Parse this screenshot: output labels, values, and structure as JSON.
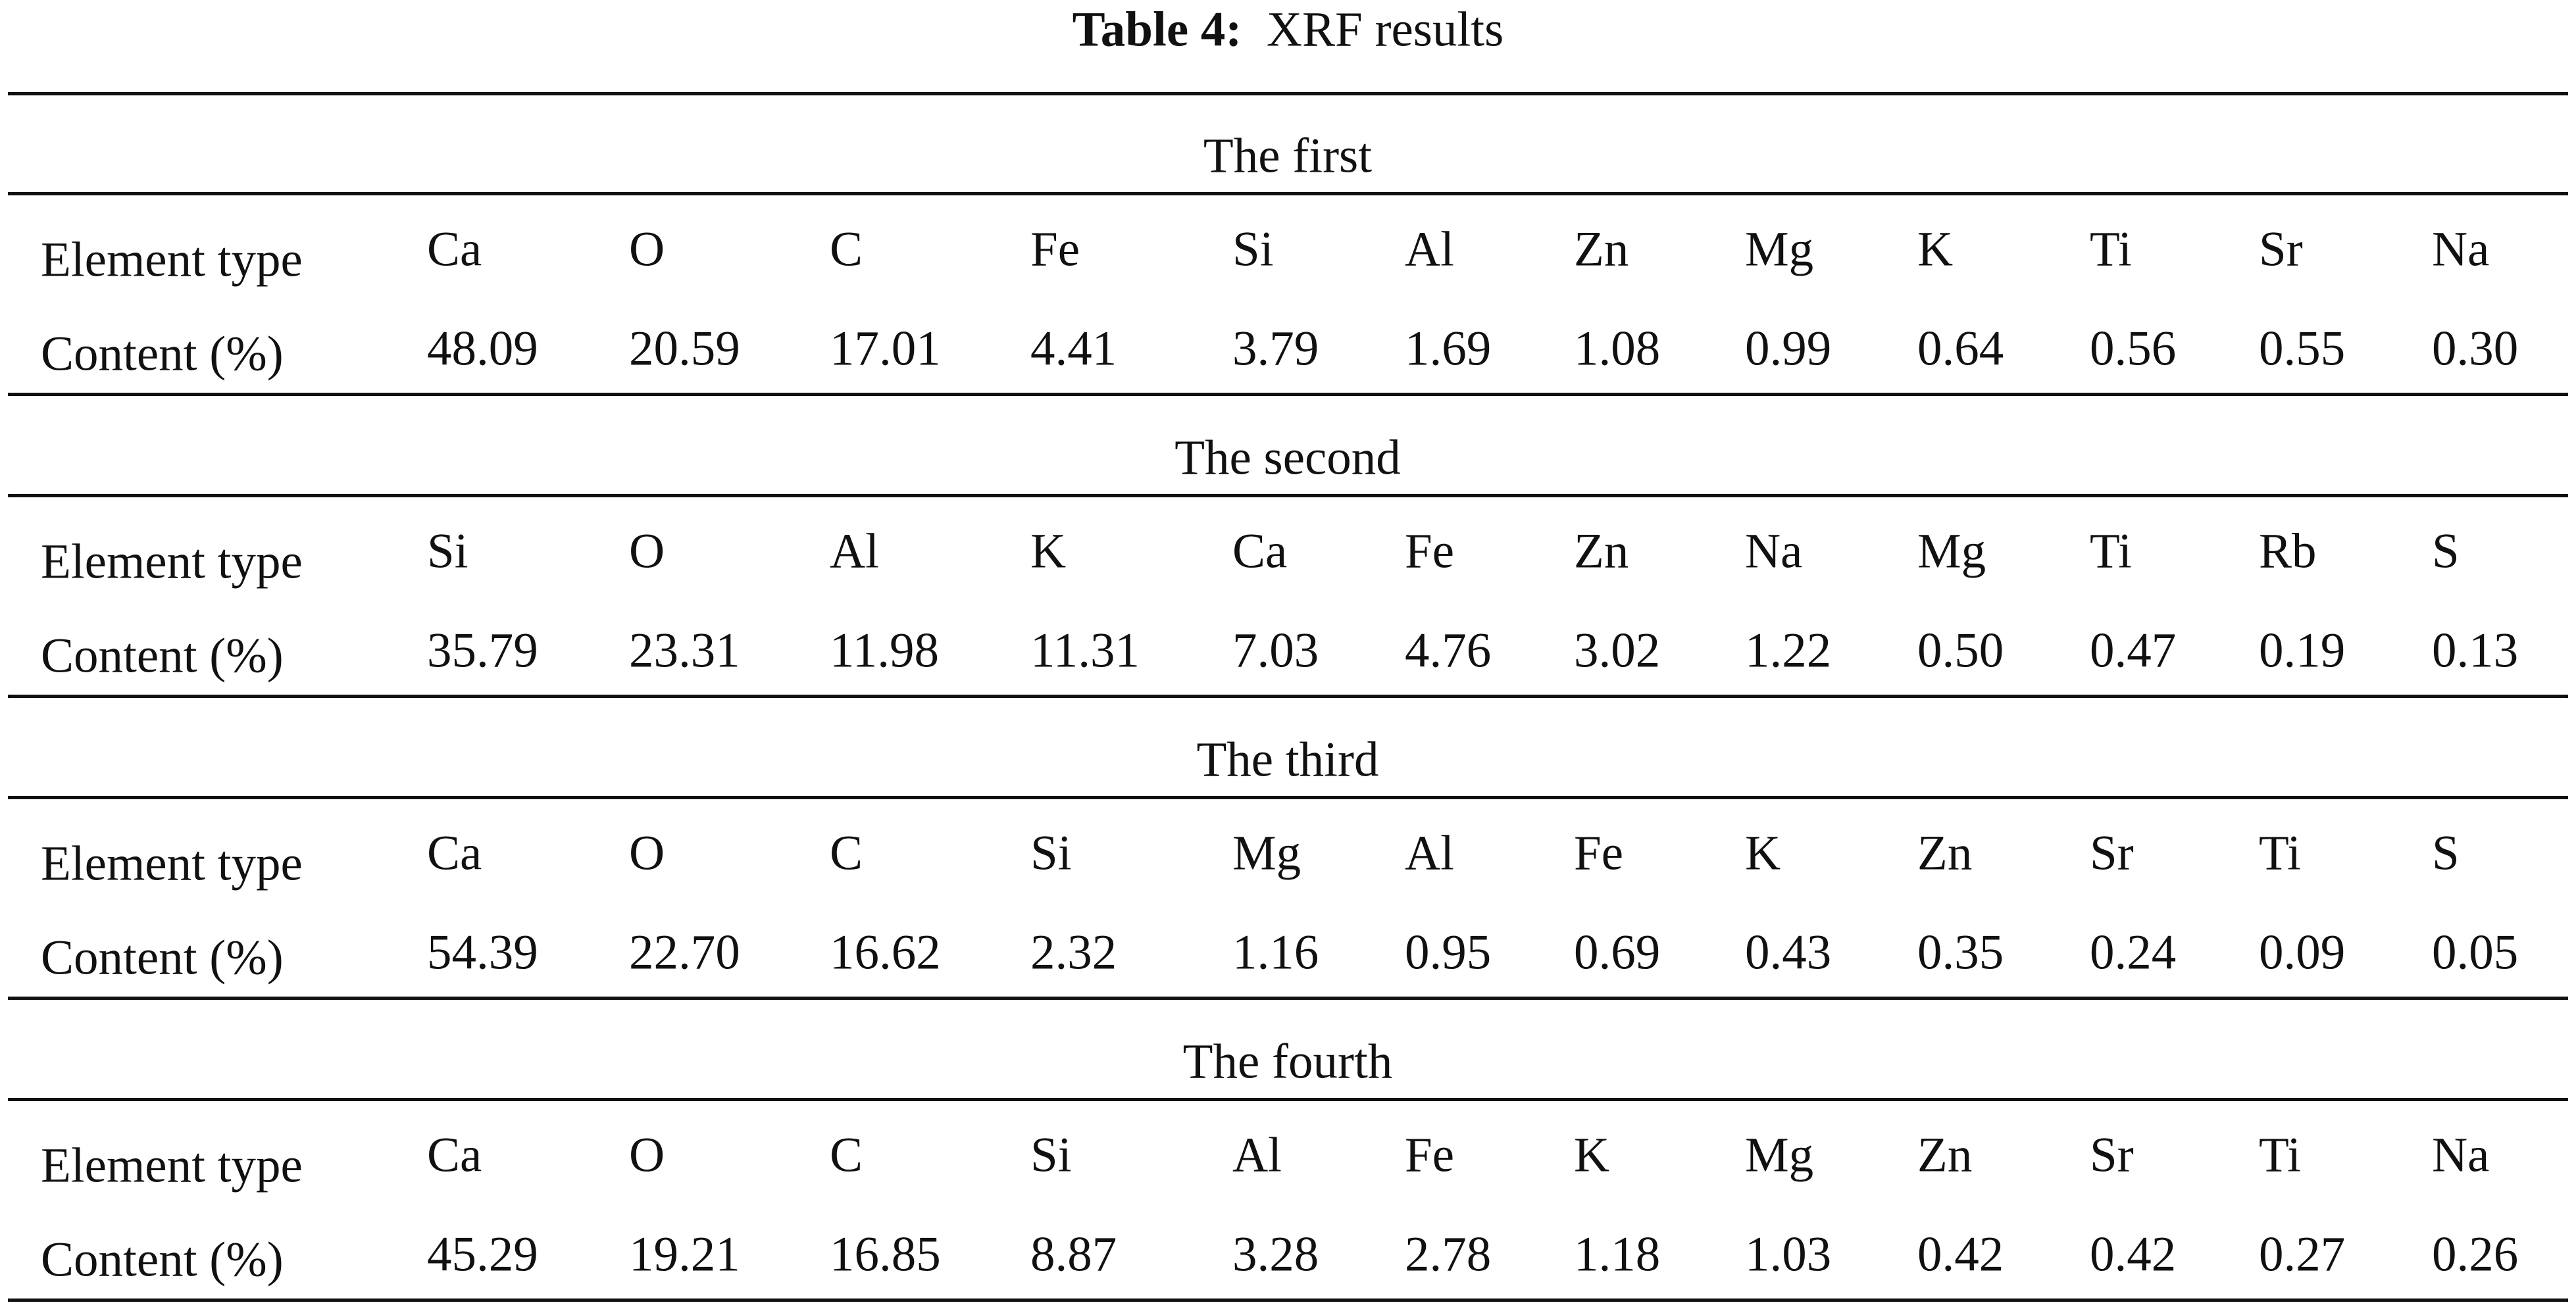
{
  "title": {
    "label": "Table 4:",
    "text": "XRF results"
  },
  "row_labels": [
    "Element type",
    "Content (%)"
  ],
  "sections": [
    {
      "name": "The first",
      "elements": [
        "Ca",
        "O",
        "C",
        "Fe",
        "Si",
        "Al",
        "Zn",
        "Mg",
        "K",
        "Ti",
        "Sr",
        "Na"
      ],
      "contents": [
        "48.09",
        "20.59",
        "17.01",
        "4.41",
        "3.79",
        "1.69",
        "1.08",
        "0.99",
        "0.64",
        "0.56",
        "0.55",
        "0.30"
      ]
    },
    {
      "name": "The second",
      "elements": [
        "Si",
        "O",
        "Al",
        "K",
        "Ca",
        "Fe",
        "Zn",
        "Na",
        "Mg",
        "Ti",
        "Rb",
        "S"
      ],
      "contents": [
        "35.79",
        "23.31",
        "11.98",
        "11.31",
        "7.03",
        "4.76",
        "3.02",
        "1.22",
        "0.50",
        "0.47",
        "0.19",
        "0.13"
      ]
    },
    {
      "name": "The third",
      "elements": [
        "Ca",
        "O",
        "C",
        "Si",
        "Mg",
        "Al",
        "Fe",
        "K",
        "Zn",
        "Sr",
        "Ti",
        "S"
      ],
      "contents": [
        "54.39",
        "22.70",
        "16.62",
        "2.32",
        "1.16",
        "0.95",
        "0.69",
        "0.43",
        "0.35",
        "0.24",
        "0.09",
        "0.05"
      ]
    },
    {
      "name": "The fourth",
      "elements": [
        "Ca",
        "O",
        "C",
        "Si",
        "Al",
        "Fe",
        "K",
        "Mg",
        "Zn",
        "Sr",
        "Ti",
        "Na"
      ],
      "contents": [
        "45.29",
        "19.21",
        "16.85",
        "8.87",
        "3.28",
        "2.78",
        "1.18",
        "1.03",
        "0.42",
        "0.42",
        "0.27",
        "0.26"
      ]
    }
  ]
}
